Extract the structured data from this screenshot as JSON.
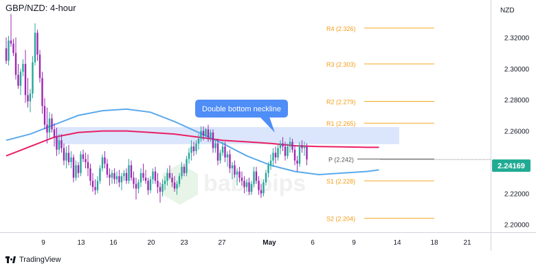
{
  "header": {
    "title": "GBP/NZD: 4-hour",
    "currency": "NZD"
  },
  "brand": {
    "name": "TradingView"
  },
  "colors": {
    "bull": "#26a69a",
    "bear": "#9c27b0",
    "sma100": "#5aa9ec",
    "sma200": "#e91e63",
    "pivot_line": "#f5a623",
    "pivot_text": "#f39c12",
    "callout_bg": "#4f8df7",
    "zone": "#cfdcfb",
    "price_badge": "#22ab94"
  },
  "chart_data": {
    "type": "candlestick",
    "title": "GBP/NZD: 4-hour",
    "ylabel": "NZD",
    "ylim": [
      2.195,
      2.344
    ],
    "y_ticks": [
      "2.32000",
      "2.30000",
      "2.28000",
      "2.26000",
      "2.22000",
      "2.20000"
    ],
    "x_ticks": [
      "9",
      "13",
      "16",
      "20",
      "23",
      "27",
      "May",
      "6",
      "9",
      "14",
      "18",
      "21"
    ],
    "last_price": "2.24169",
    "current_level": 2.2417,
    "pivots": [
      {
        "label": "R4 (2.326)",
        "value": 2.326
      },
      {
        "label": "R3 (2.303)",
        "value": 2.303
      },
      {
        "label": "R2 (2.279)",
        "value": 2.279
      },
      {
        "label": "R1 (2.265)",
        "value": 2.265
      },
      {
        "label": "P (2.242)",
        "value": 2.242
      },
      {
        "label": "S1 (2.228)",
        "value": 2.228
      },
      {
        "label": "S2 (2.204)",
        "value": 2.204
      }
    ],
    "neckline_zone": [
      2.2515,
      2.2625
    ],
    "annotation": "Double bottom neckline",
    "sma100": [
      [
        0,
        2.254
      ],
      [
        10,
        2.258
      ],
      [
        20,
        2.264
      ],
      [
        30,
        2.27
      ],
      [
        40,
        2.273
      ],
      [
        50,
        2.274
      ],
      [
        60,
        2.272
      ],
      [
        70,
        2.266
      ],
      [
        80,
        2.259
      ],
      [
        90,
        2.252
      ],
      [
        100,
        2.244
      ],
      [
        110,
        2.238
      ],
      [
        120,
        2.234
      ],
      [
        130,
        2.232
      ],
      [
        140,
        2.233
      ],
      [
        150,
        2.234
      ],
      [
        155,
        2.235
      ]
    ],
    "sma200": [
      [
        0,
        2.244
      ],
      [
        10,
        2.25
      ],
      [
        20,
        2.256
      ],
      [
        30,
        2.259
      ],
      [
        40,
        2.26
      ],
      [
        50,
        2.26
      ],
      [
        60,
        2.259
      ],
      [
        70,
        2.258
      ],
      [
        80,
        2.256
      ],
      [
        90,
        2.254
      ],
      [
        100,
        2.253
      ],
      [
        110,
        2.252
      ],
      [
        120,
        2.2505
      ],
      [
        130,
        2.25
      ],
      [
        140,
        2.2498
      ],
      [
        150,
        2.2495
      ],
      [
        155,
        2.2495
      ]
    ],
    "candles": [
      {
        "o": 2.313,
        "h": 2.32,
        "l": 2.303,
        "c": 2.305
      },
      {
        "o": 2.305,
        "h": 2.321,
        "l": 2.302,
        "c": 2.318
      },
      {
        "o": 2.318,
        "h": 2.335,
        "l": 2.314,
        "c": 2.316
      },
      {
        "o": 2.316,
        "h": 2.319,
        "l": 2.308,
        "c": 2.31
      },
      {
        "o": 2.31,
        "h": 2.32,
        "l": 2.293,
        "c": 2.296
      },
      {
        "o": 2.296,
        "h": 2.303,
        "l": 2.287,
        "c": 2.289
      },
      {
        "o": 2.289,
        "h": 2.3,
        "l": 2.283,
        "c": 2.298
      },
      {
        "o": 2.298,
        "h": 2.306,
        "l": 2.295,
        "c": 2.303
      },
      {
        "o": 2.303,
        "h": 2.312,
        "l": 2.278,
        "c": 2.283
      },
      {
        "o": 2.283,
        "h": 2.294,
        "l": 2.275,
        "c": 2.279
      },
      {
        "o": 2.279,
        "h": 2.287,
        "l": 2.272,
        "c": 2.284
      },
      {
        "o": 2.284,
        "h": 2.308,
        "l": 2.281,
        "c": 2.304
      },
      {
        "o": 2.304,
        "h": 2.329,
        "l": 2.302,
        "c": 2.323
      },
      {
        "o": 2.323,
        "h": 2.325,
        "l": 2.305,
        "c": 2.309
      },
      {
        "o": 2.309,
        "h": 2.312,
        "l": 2.291,
        "c": 2.294
      },
      {
        "o": 2.294,
        "h": 2.298,
        "l": 2.271,
        "c": 2.276
      },
      {
        "o": 2.276,
        "h": 2.281,
        "l": 2.261,
        "c": 2.264
      },
      {
        "o": 2.264,
        "h": 2.275,
        "l": 2.252,
        "c": 2.259
      },
      {
        "o": 2.259,
        "h": 2.272,
        "l": 2.255,
        "c": 2.268
      },
      {
        "o": 2.268,
        "h": 2.271,
        "l": 2.259,
        "c": 2.261
      },
      {
        "o": 2.261,
        "h": 2.265,
        "l": 2.25,
        "c": 2.256
      },
      {
        "o": 2.256,
        "h": 2.262,
        "l": 2.244,
        "c": 2.248
      },
      {
        "o": 2.248,
        "h": 2.258,
        "l": 2.245,
        "c": 2.254
      },
      {
        "o": 2.254,
        "h": 2.258,
        "l": 2.246,
        "c": 2.249
      },
      {
        "o": 2.249,
        "h": 2.252,
        "l": 2.238,
        "c": 2.241
      },
      {
        "o": 2.241,
        "h": 2.25,
        "l": 2.236,
        "c": 2.246
      },
      {
        "o": 2.246,
        "h": 2.251,
        "l": 2.238,
        "c": 2.24
      },
      {
        "o": 2.24,
        "h": 2.247,
        "l": 2.236,
        "c": 2.243
      },
      {
        "o": 2.243,
        "h": 2.245,
        "l": 2.227,
        "c": 2.23
      },
      {
        "o": 2.23,
        "h": 2.241,
        "l": 2.228,
        "c": 2.238
      },
      {
        "o": 2.238,
        "h": 2.24,
        "l": 2.23,
        "c": 2.233
      },
      {
        "o": 2.233,
        "h": 2.247,
        "l": 2.231,
        "c": 2.245
      },
      {
        "o": 2.245,
        "h": 2.248,
        "l": 2.24,
        "c": 2.242
      },
      {
        "o": 2.242,
        "h": 2.246,
        "l": 2.236,
        "c": 2.24
      },
      {
        "o": 2.24,
        "h": 2.245,
        "l": 2.231,
        "c": 2.236
      },
      {
        "o": 2.236,
        "h": 2.239,
        "l": 2.225,
        "c": 2.228
      },
      {
        "o": 2.228,
        "h": 2.233,
        "l": 2.221,
        "c": 2.224
      },
      {
        "o": 2.224,
        "h": 2.229,
        "l": 2.219,
        "c": 2.222
      },
      {
        "o": 2.222,
        "h": 2.231,
        "l": 2.22,
        "c": 2.228
      },
      {
        "o": 2.228,
        "h": 2.238,
        "l": 2.226,
        "c": 2.236
      },
      {
        "o": 2.236,
        "h": 2.245,
        "l": 2.234,
        "c": 2.243
      },
      {
        "o": 2.243,
        "h": 2.247,
        "l": 2.236,
        "c": 2.239
      },
      {
        "o": 2.239,
        "h": 2.242,
        "l": 2.23,
        "c": 2.232
      },
      {
        "o": 2.232,
        "h": 2.236,
        "l": 2.225,
        "c": 2.23
      },
      {
        "o": 2.23,
        "h": 2.235,
        "l": 2.226,
        "c": 2.233
      },
      {
        "o": 2.233,
        "h": 2.236,
        "l": 2.226,
        "c": 2.229
      },
      {
        "o": 2.229,
        "h": 2.234,
        "l": 2.226,
        "c": 2.231
      },
      {
        "o": 2.231,
        "h": 2.235,
        "l": 2.224,
        "c": 2.227
      },
      {
        "o": 2.227,
        "h": 2.233,
        "l": 2.222,
        "c": 2.231
      },
      {
        "o": 2.231,
        "h": 2.235,
        "l": 2.228,
        "c": 2.233
      },
      {
        "o": 2.233,
        "h": 2.236,
        "l": 2.226,
        "c": 2.228
      },
      {
        "o": 2.228,
        "h": 2.242,
        "l": 2.226,
        "c": 2.238
      },
      {
        "o": 2.238,
        "h": 2.241,
        "l": 2.228,
        "c": 2.23
      },
      {
        "o": 2.23,
        "h": 2.234,
        "l": 2.223,
        "c": 2.226
      },
      {
        "o": 2.226,
        "h": 2.23,
        "l": 2.216,
        "c": 2.223
      },
      {
        "o": 2.223,
        "h": 2.229,
        "l": 2.22,
        "c": 2.227
      },
      {
        "o": 2.227,
        "h": 2.236,
        "l": 2.224,
        "c": 2.233
      },
      {
        "o": 2.233,
        "h": 2.239,
        "l": 2.228,
        "c": 2.23
      },
      {
        "o": 2.23,
        "h": 2.235,
        "l": 2.226,
        "c": 2.228
      },
      {
        "o": 2.228,
        "h": 2.23,
        "l": 2.219,
        "c": 2.222
      },
      {
        "o": 2.222,
        "h": 2.231,
        "l": 2.22,
        "c": 2.229
      },
      {
        "o": 2.229,
        "h": 2.236,
        "l": 2.226,
        "c": 2.234
      },
      {
        "o": 2.234,
        "h": 2.237,
        "l": 2.226,
        "c": 2.228
      },
      {
        "o": 2.228,
        "h": 2.233,
        "l": 2.22,
        "c": 2.224
      },
      {
        "o": 2.224,
        "h": 2.227,
        "l": 2.214,
        "c": 2.221
      },
      {
        "o": 2.221,
        "h": 2.229,
        "l": 2.218,
        "c": 2.226
      },
      {
        "o": 2.226,
        "h": 2.231,
        "l": 2.222,
        "c": 2.228
      },
      {
        "o": 2.228,
        "h": 2.236,
        "l": 2.225,
        "c": 2.233
      },
      {
        "o": 2.233,
        "h": 2.238,
        "l": 2.229,
        "c": 2.23
      },
      {
        "o": 2.23,
        "h": 2.233,
        "l": 2.224,
        "c": 2.227
      },
      {
        "o": 2.227,
        "h": 2.231,
        "l": 2.221,
        "c": 2.223
      },
      {
        "o": 2.223,
        "h": 2.228,
        "l": 2.219,
        "c": 2.226
      },
      {
        "o": 2.226,
        "h": 2.233,
        "l": 2.224,
        "c": 2.231
      },
      {
        "o": 2.231,
        "h": 2.24,
        "l": 2.229,
        "c": 2.237
      },
      {
        "o": 2.237,
        "h": 2.239,
        "l": 2.231,
        "c": 2.233
      },
      {
        "o": 2.233,
        "h": 2.244,
        "l": 2.231,
        "c": 2.242
      },
      {
        "o": 2.242,
        "h": 2.249,
        "l": 2.239,
        "c": 2.246
      },
      {
        "o": 2.246,
        "h": 2.254,
        "l": 2.241,
        "c": 2.25
      },
      {
        "o": 2.25,
        "h": 2.253,
        "l": 2.244,
        "c": 2.247
      },
      {
        "o": 2.247,
        "h": 2.254,
        "l": 2.245,
        "c": 2.252
      },
      {
        "o": 2.252,
        "h": 2.258,
        "l": 2.248,
        "c": 2.255
      },
      {
        "o": 2.255,
        "h": 2.263,
        "l": 2.253,
        "c": 2.26
      },
      {
        "o": 2.26,
        "h": 2.263,
        "l": 2.254,
        "c": 2.257
      },
      {
        "o": 2.257,
        "h": 2.262,
        "l": 2.255,
        "c": 2.261
      },
      {
        "o": 2.261,
        "h": 2.264,
        "l": 2.253,
        "c": 2.256
      },
      {
        "o": 2.256,
        "h": 2.261,
        "l": 2.253,
        "c": 2.259
      },
      {
        "o": 2.259,
        "h": 2.261,
        "l": 2.246,
        "c": 2.249
      },
      {
        "o": 2.249,
        "h": 2.255,
        "l": 2.246,
        "c": 2.252
      },
      {
        "o": 2.252,
        "h": 2.255,
        "l": 2.238,
        "c": 2.241
      },
      {
        "o": 2.241,
        "h": 2.248,
        "l": 2.239,
        "c": 2.246
      },
      {
        "o": 2.246,
        "h": 2.253,
        "l": 2.244,
        "c": 2.25
      },
      {
        "o": 2.25,
        "h": 2.253,
        "l": 2.24,
        "c": 2.243
      },
      {
        "o": 2.243,
        "h": 2.247,
        "l": 2.237,
        "c": 2.245
      },
      {
        "o": 2.245,
        "h": 2.248,
        "l": 2.233,
        "c": 2.236
      },
      {
        "o": 2.236,
        "h": 2.24,
        "l": 2.229,
        "c": 2.238
      },
      {
        "o": 2.238,
        "h": 2.241,
        "l": 2.23,
        "c": 2.232
      },
      {
        "o": 2.232,
        "h": 2.236,
        "l": 2.225,
        "c": 2.234
      },
      {
        "o": 2.234,
        "h": 2.237,
        "l": 2.227,
        "c": 2.23
      },
      {
        "o": 2.23,
        "h": 2.234,
        "l": 2.225,
        "c": 2.228
      },
      {
        "o": 2.228,
        "h": 2.231,
        "l": 2.22,
        "c": 2.224
      },
      {
        "o": 2.224,
        "h": 2.229,
        "l": 2.221,
        "c": 2.227
      },
      {
        "o": 2.227,
        "h": 2.23,
        "l": 2.219,
        "c": 2.221
      },
      {
        "o": 2.221,
        "h": 2.228,
        "l": 2.219,
        "c": 2.226
      },
      {
        "o": 2.226,
        "h": 2.237,
        "l": 2.224,
        "c": 2.234
      },
      {
        "o": 2.234,
        "h": 2.237,
        "l": 2.226,
        "c": 2.228
      },
      {
        "o": 2.228,
        "h": 2.231,
        "l": 2.219,
        "c": 2.222
      },
      {
        "o": 2.222,
        "h": 2.226,
        "l": 2.217,
        "c": 2.22
      },
      {
        "o": 2.22,
        "h": 2.229,
        "l": 2.218,
        "c": 2.227
      },
      {
        "o": 2.227,
        "h": 2.235,
        "l": 2.225,
        "c": 2.233
      },
      {
        "o": 2.233,
        "h": 2.24,
        "l": 2.23,
        "c": 2.238
      },
      {
        "o": 2.238,
        "h": 2.245,
        "l": 2.235,
        "c": 2.241
      },
      {
        "o": 2.241,
        "h": 2.249,
        "l": 2.237,
        "c": 2.246
      },
      {
        "o": 2.246,
        "h": 2.25,
        "l": 2.239,
        "c": 2.243
      },
      {
        "o": 2.243,
        "h": 2.251,
        "l": 2.241,
        "c": 2.249
      },
      {
        "o": 2.249,
        "h": 2.254,
        "l": 2.245,
        "c": 2.252
      },
      {
        "o": 2.252,
        "h": 2.256,
        "l": 2.247,
        "c": 2.25
      },
      {
        "o": 2.25,
        "h": 2.253,
        "l": 2.241,
        "c": 2.244
      },
      {
        "o": 2.244,
        "h": 2.252,
        "l": 2.242,
        "c": 2.25
      },
      {
        "o": 2.25,
        "h": 2.256,
        "l": 2.246,
        "c": 2.253
      },
      {
        "o": 2.253,
        "h": 2.255,
        "l": 2.246,
        "c": 2.248
      },
      {
        "o": 2.248,
        "h": 2.251,
        "l": 2.238,
        "c": 2.241
      },
      {
        "o": 2.241,
        "h": 2.244,
        "l": 2.234,
        "c": 2.239
      },
      {
        "o": 2.239,
        "h": 2.253,
        "l": 2.237,
        "c": 2.251
      },
      {
        "o": 2.251,
        "h": 2.254,
        "l": 2.246,
        "c": 2.249
      },
      {
        "o": 2.249,
        "h": 2.253,
        "l": 2.244,
        "c": 2.25
      },
      {
        "o": 2.25,
        "h": 2.252,
        "l": 2.238,
        "c": 2.2417
      }
    ]
  }
}
